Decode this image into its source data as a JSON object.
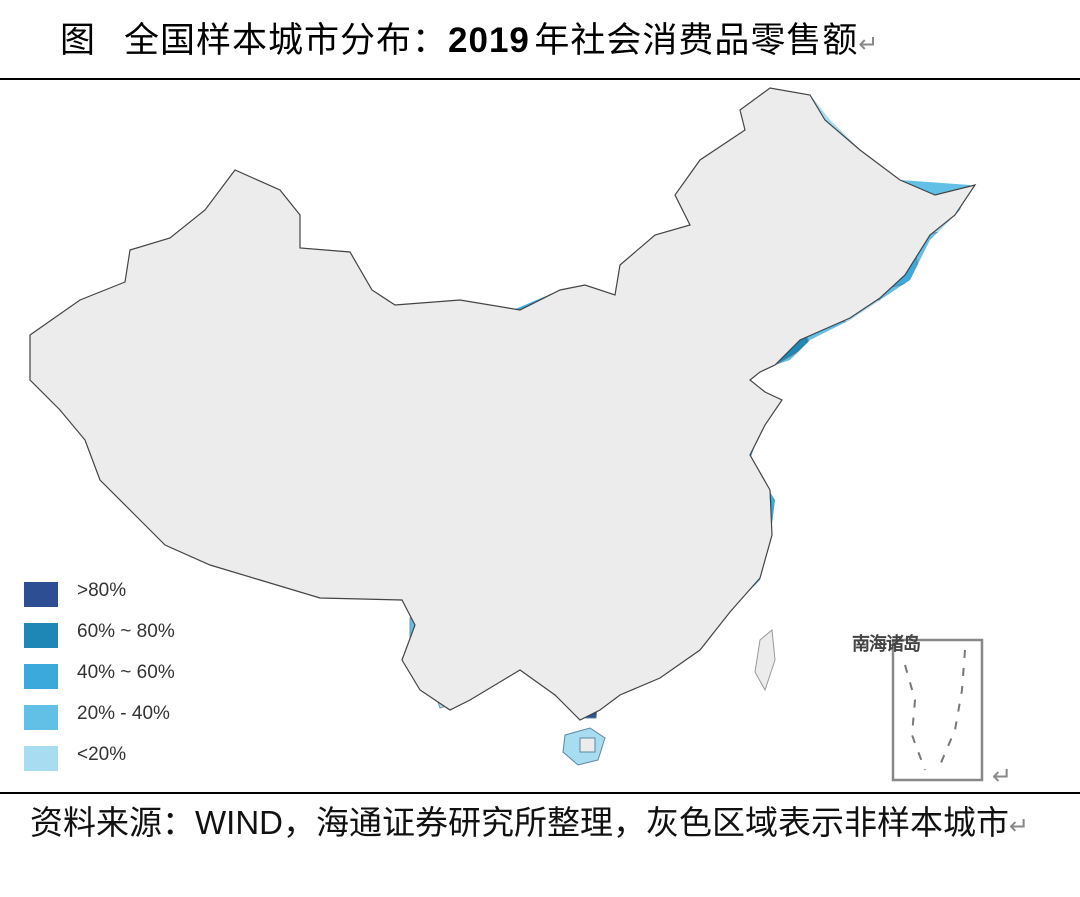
{
  "title": {
    "figure_label": "图",
    "prefix": "全国样本城市分布：",
    "year": "2019",
    "suffix": "年社会消费品零售额",
    "return_mark": "↵"
  },
  "legend": [
    {
      "label": ">80%",
      "color": "#2e4e94"
    },
    {
      "label": "60% ~ 80%",
      "color": "#1f87b5"
    },
    {
      "label": "40% ~ 60%",
      "color": "#3aa9dc"
    },
    {
      "label": "20% - 40%",
      "color": "#62c0e6"
    },
    {
      "label": "<20%",
      "color": "#a8dcf0"
    }
  ],
  "non_sample_color": "#ececec",
  "inset": {
    "label": "南海诸岛",
    "return_mark": "↵"
  },
  "source": {
    "prefix": "资料来源：",
    "provider": "WIND",
    "suffix": "，海通证券研究所整理，灰色区域表示非样本城市",
    "return_mark": "↵"
  }
}
